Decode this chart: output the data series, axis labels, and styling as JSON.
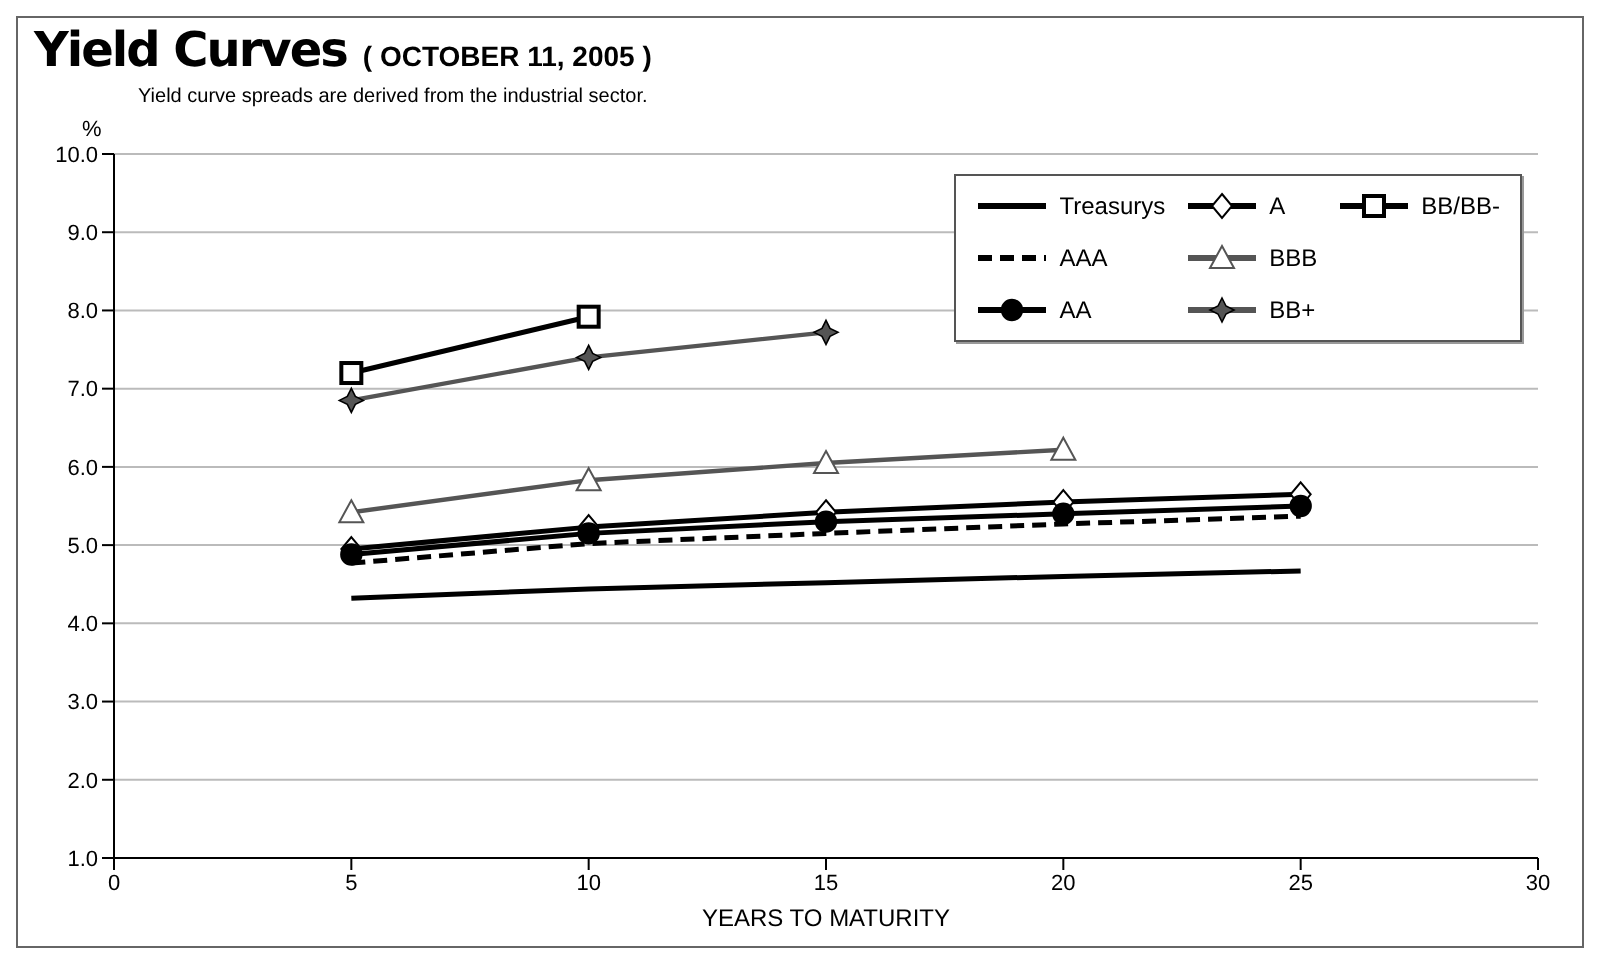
{
  "chart_data": {
    "type": "line",
    "title": "Yield Curves",
    "subtitle": "( OCTOBER 11, 2005 )",
    "annotations": [
      "Yield curve spreads are derived from the industrial sector."
    ],
    "xlabel": "YEARS TO MATURITY",
    "ylabel": "%",
    "xlim": [
      0,
      30
    ],
    "xticks": [
      0,
      5,
      10,
      15,
      20,
      25,
      30
    ],
    "ylim": [
      1,
      10
    ],
    "yticks": [
      {
        "value": 1,
        "label": "1.0"
      },
      {
        "value": 2,
        "label": "2.0"
      },
      {
        "value": 3,
        "label": "3.0"
      },
      {
        "value": 4,
        "label": "4.0"
      },
      {
        "value": 5,
        "label": "5.0"
      },
      {
        "value": 6,
        "label": "6.0"
      },
      {
        "value": 7,
        "label": "7.0"
      },
      {
        "value": 8,
        "label": "8.0"
      },
      {
        "value": 9,
        "label": "9.0"
      },
      {
        "value": 10,
        "label": "10.0"
      }
    ],
    "grid": "y",
    "legend": "top right",
    "series": [
      {
        "name": "Treasurys",
        "color": "#000000",
        "marker": "none",
        "line_style": "solid",
        "x": [
          5,
          10,
          15,
          20,
          25
        ],
        "values": [
          4.32,
          4.44,
          4.52,
          4.6,
          4.67
        ]
      },
      {
        "name": "AAA",
        "color": "#000000",
        "marker": "none",
        "line_style": "dashed",
        "x": [
          5,
          10,
          15,
          20,
          25
        ],
        "values": [
          4.77,
          5.02,
          5.15,
          5.27,
          5.37
        ]
      },
      {
        "name": "AA",
        "color": "#000000",
        "marker": "circle",
        "line_style": "solid",
        "x": [
          5,
          10,
          15,
          20,
          25
        ],
        "values": [
          4.88,
          5.15,
          5.3,
          5.4,
          5.5
        ]
      },
      {
        "name": "A",
        "color": "#000000",
        "marker": "diamond",
        "line_style": "solid",
        "x": [
          5,
          10,
          15,
          20,
          25
        ],
        "values": [
          4.95,
          5.23,
          5.42,
          5.55,
          5.65
        ]
      },
      {
        "name": "BBB",
        "color": "#555555",
        "marker": "triangle",
        "line_style": "solid",
        "x": [
          5,
          10,
          15,
          20
        ],
        "values": [
          5.42,
          5.83,
          6.05,
          6.22
        ]
      },
      {
        "name": "BB+",
        "color": "#555555",
        "marker": "cross",
        "line_style": "solid",
        "x": [
          5,
          10,
          15
        ],
        "values": [
          6.85,
          7.4,
          7.72
        ]
      },
      {
        "name": "BB/BB-",
        "color": "#000000",
        "marker": "square",
        "line_style": "solid",
        "x": [
          5,
          10
        ],
        "values": [
          7.2,
          7.92
        ]
      }
    ]
  }
}
